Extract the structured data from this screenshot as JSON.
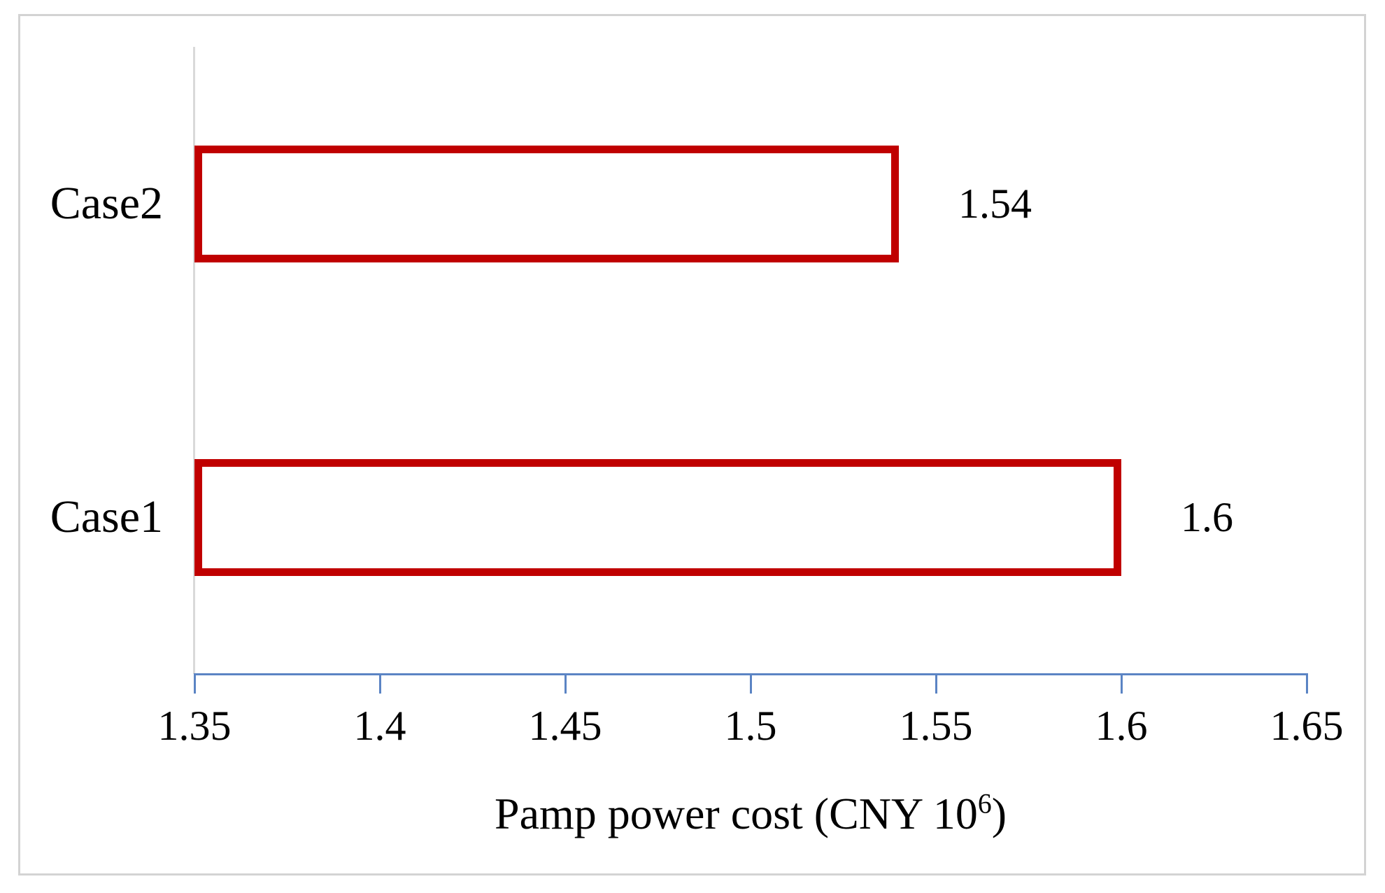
{
  "figure": {
    "background_color": "#ffffff",
    "frame_border_color": "#d3d3d3"
  },
  "chart_data": {
    "type": "bar",
    "orientation": "horizontal",
    "categories": [
      "Case2",
      "Case1"
    ],
    "values": [
      1.54,
      1.6
    ],
    "value_labels": [
      "1.54",
      "1.6"
    ],
    "xlabel": "Pamp power cost (CNY 10⁶)",
    "xlabel_prefix": "Pamp power cost (CNY 10",
    "xlabel_superscript": "6",
    "xlabel_suffix": ")",
    "xlim": [
      1.35,
      1.65
    ],
    "xtick_values": [
      1.35,
      1.4,
      1.45,
      1.5,
      1.55,
      1.6,
      1.65
    ],
    "xtick_labels": [
      "1.35",
      "1.4",
      "1.45",
      "1.5",
      "1.55",
      "1.6",
      "1.65"
    ],
    "grid": false,
    "legend": "none",
    "bar_fill_color": "#ffffff",
    "bar_border_color": "#c00000",
    "x_axis_line_color": "#5b84c4",
    "category_axis_line_color": "#d9d9d9",
    "text_color": "#000000"
  }
}
